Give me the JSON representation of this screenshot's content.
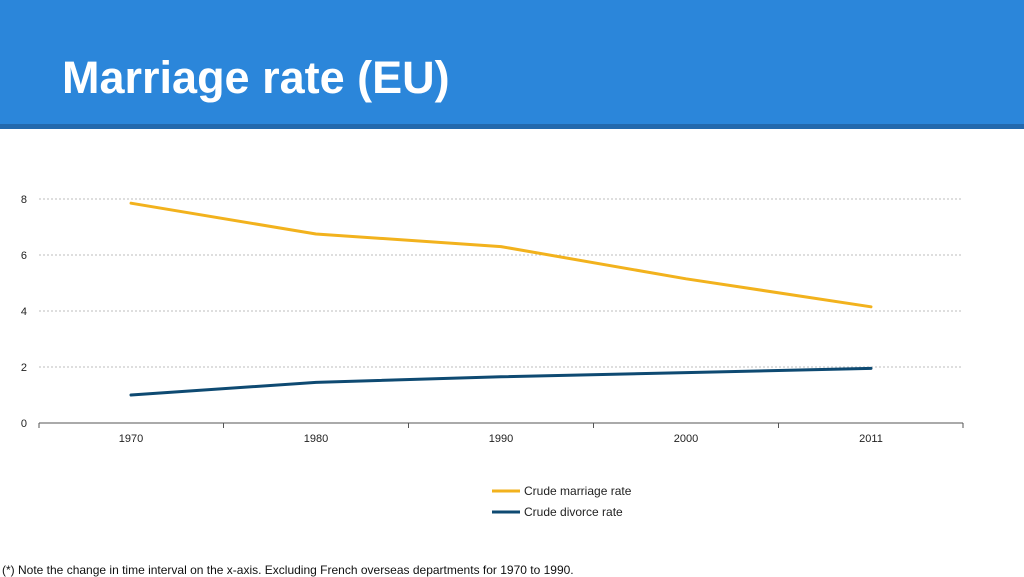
{
  "slide": {
    "title": "Marriage rate (EU)",
    "header_color": "#2b86da",
    "footnote": "(*) Note the change in time interval on the x-axis. Excluding French overseas departments for 1970 to 1990."
  },
  "chart_data": {
    "type": "line",
    "categories": [
      "1970",
      "1980",
      "1990",
      "2000",
      "2011"
    ],
    "series": [
      {
        "name": "Crude marriage rate",
        "values": [
          7.85,
          6.75,
          6.3,
          5.15,
          4.15
        ],
        "color": "#f2b21d"
      },
      {
        "name": "Crude divorce rate",
        "values": [
          1.0,
          1.45,
          1.65,
          1.8,
          1.95
        ],
        "color": "#0e4a72"
      }
    ],
    "yticks": [
      0,
      2,
      4,
      6,
      8
    ],
    "ylim": [
      0,
      8
    ],
    "grid": true,
    "legend_position": "bottom-center",
    "title": "",
    "xlabel": "",
    "ylabel": ""
  }
}
